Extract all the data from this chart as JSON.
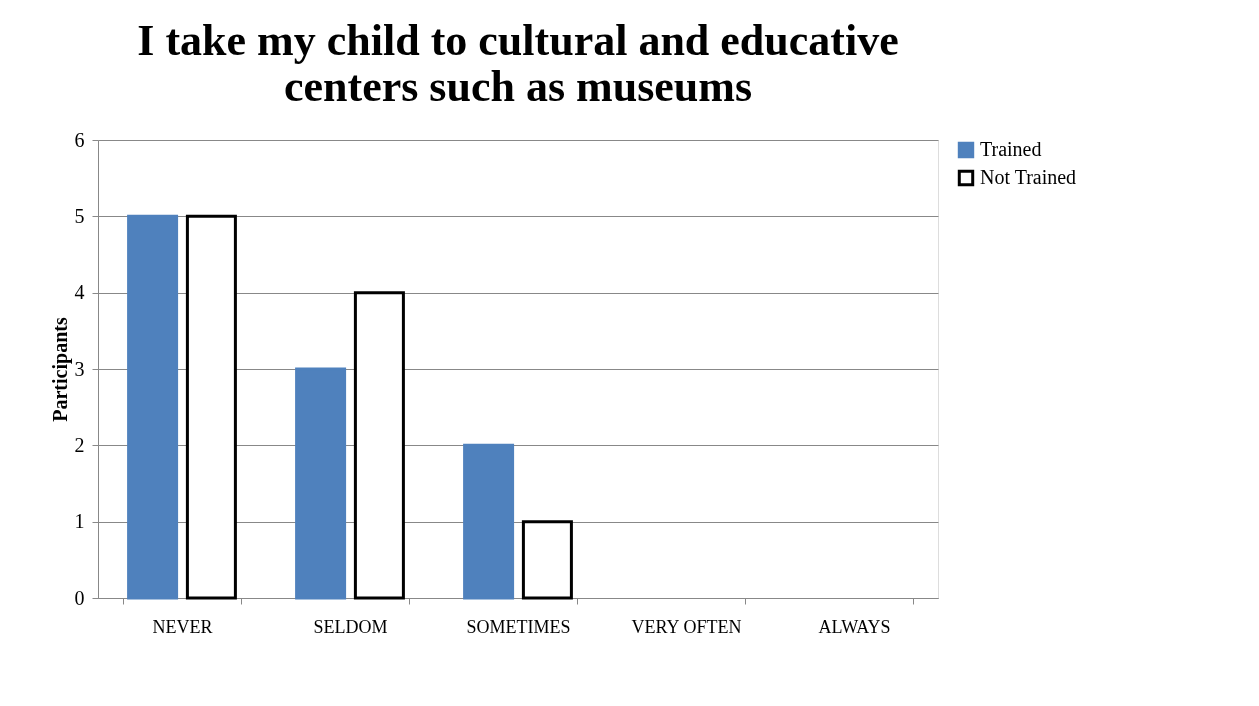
{
  "chart_data": {
    "type": "bar",
    "title": [
      "I take my child to cultural and educative",
      "centers such as museums"
    ],
    "ylabel": "Participants",
    "categories": [
      "NEVER",
      "SELDOM",
      "SOMETIMES",
      "VERY OFTEN",
      "ALWAYS"
    ],
    "series": [
      {
        "name": "Trained",
        "color": "#4f81bd",
        "values": [
          5,
          3,
          2,
          0,
          0
        ]
      },
      {
        "name": "Not Trained",
        "color": "#ffffff",
        "values": [
          5,
          4,
          1,
          0,
          0
        ]
      }
    ],
    "ylim": [
      0,
      6
    ],
    "yticks": [
      0,
      1,
      2,
      3,
      4,
      5,
      6
    ],
    "grid": "y",
    "legend": "right"
  }
}
